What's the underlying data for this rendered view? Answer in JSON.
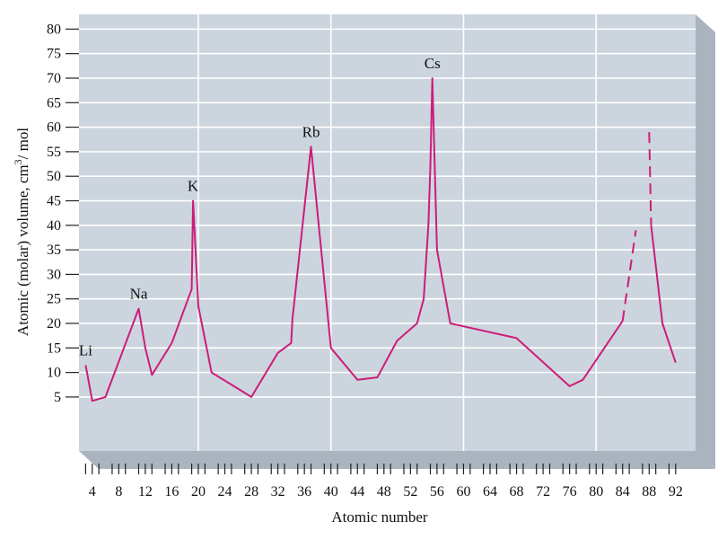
{
  "chart_data": {
    "type": "line",
    "title": "",
    "xlabel": "Atomic number",
    "ylabel_main": "Atomic (molar) volume, cm",
    "ylabel_sup": "3",
    "ylabel_tail": "/ mol",
    "xlim": [
      2,
      95
    ],
    "ylim": [
      -6,
      83
    ],
    "x_ticks": [
      4,
      8,
      12,
      16,
      20,
      24,
      28,
      32,
      36,
      40,
      44,
      48,
      52,
      56,
      60,
      64,
      68,
      72,
      76,
      80,
      84,
      88,
      92
    ],
    "y_ticks": [
      5,
      10,
      15,
      20,
      25,
      30,
      35,
      40,
      45,
      50,
      55,
      60,
      65,
      70,
      75,
      80
    ],
    "x_gridlines": [
      20,
      40,
      60,
      80
    ],
    "grid": true,
    "line_color": "#cc1d7a",
    "panel_color": "#ccd5de",
    "panel_side_color": "#a9b4bf",
    "series": [
      {
        "points": [
          [
            3,
            11.5
          ],
          [
            4,
            4.2
          ],
          [
            6,
            5
          ],
          [
            11,
            23
          ],
          [
            12,
            15
          ],
          [
            13,
            9.5
          ],
          [
            16,
            16
          ],
          [
            19,
            27
          ],
          [
            19.2,
            45
          ],
          [
            20,
            23.5
          ],
          [
            22,
            10
          ],
          [
            28,
            5
          ],
          [
            32,
            14
          ],
          [
            34,
            16
          ],
          [
            34.2,
            21
          ],
          [
            37,
            56
          ],
          [
            40,
            15
          ],
          [
            44,
            8.5
          ],
          [
            47,
            9
          ],
          [
            50,
            16.5
          ],
          [
            53,
            20
          ],
          [
            54,
            25
          ],
          [
            54.7,
            40
          ],
          [
            55,
            52
          ],
          [
            55.3,
            70
          ],
          [
            56,
            35
          ],
          [
            58,
            20
          ],
          [
            68,
            17
          ],
          [
            76,
            7.2
          ],
          [
            78,
            8.5
          ],
          [
            84,
            20.5
          ]
        ],
        "dash": false
      },
      {
        "points": [
          [
            84,
            20.5
          ],
          [
            86,
            39
          ]
        ],
        "dash": true
      },
      {
        "points": [
          [
            88,
            59
          ],
          [
            88.3,
            40
          ]
        ],
        "dash": true
      },
      {
        "points": [
          [
            88.3,
            40
          ],
          [
            90,
            20
          ],
          [
            92,
            12
          ]
        ],
        "dash": false
      }
    ],
    "annotations": [
      {
        "text": "Li",
        "x": 3,
        "y": 13.5
      },
      {
        "text": "Na",
        "x": 11,
        "y": 25
      },
      {
        "text": "K",
        "x": 19.2,
        "y": 47
      },
      {
        "text": "Rb",
        "x": 37,
        "y": 58
      },
      {
        "text": "Cs",
        "x": 55.3,
        "y": 72
      }
    ]
  }
}
